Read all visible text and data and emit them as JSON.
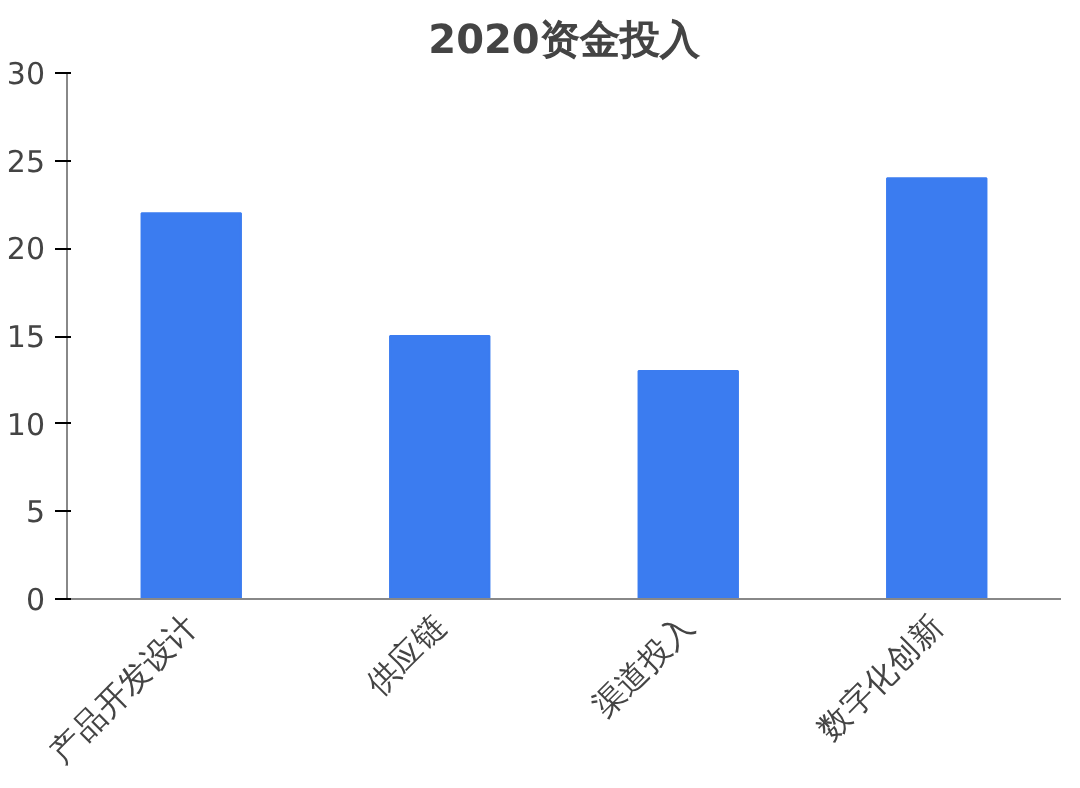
{
  "chart_data": {
    "type": "bar",
    "title": "2020资金投入",
    "categories": [
      "产品开发设计",
      "供应链",
      "渠道投入",
      "数字化创新"
    ],
    "values": [
      22,
      15,
      13,
      24
    ],
    "color": "#3b7cf0",
    "ylim": [
      0,
      30
    ],
    "yticks": [
      0,
      5,
      10,
      15,
      20,
      25,
      30
    ],
    "grid": false
  }
}
